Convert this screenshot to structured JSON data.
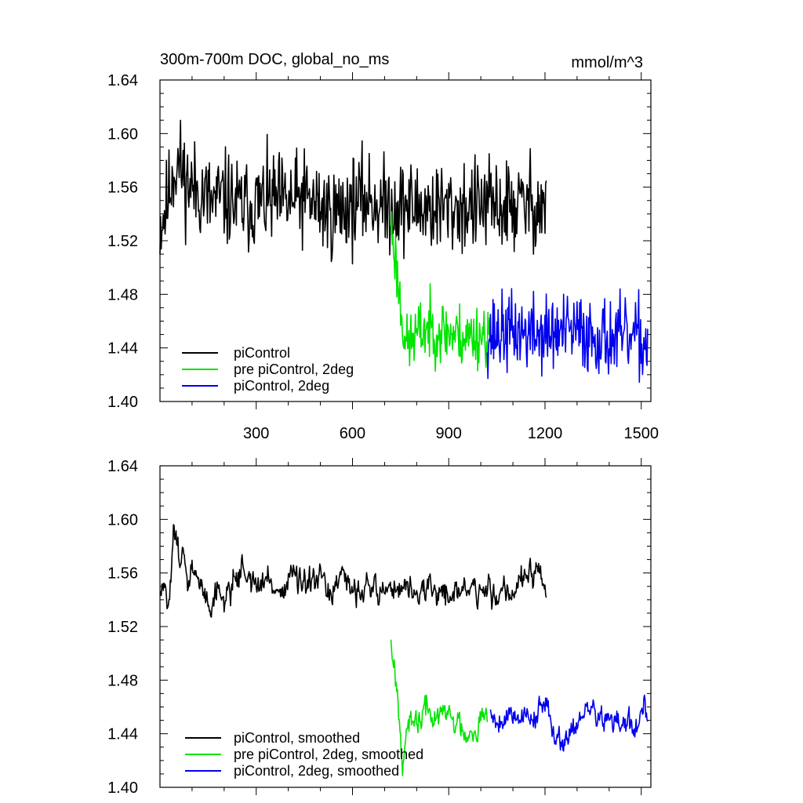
{
  "colors": {
    "piControl": "#000000",
    "pre": "#00e400",
    "twodeg": "#0000ee",
    "frame": "#000000"
  },
  "chart_data": [
    {
      "type": "line",
      "title": "300m-700m DOC, global_no_ms",
      "units": "mmol/m^3",
      "xlim": [
        0,
        1530
      ],
      "ylim": [
        1.4,
        1.64
      ],
      "x_ticks": [
        300,
        600,
        900,
        1200,
        1500
      ],
      "x_tick_labels": [
        "300",
        "600",
        "900",
        "1200",
        "1500"
      ],
      "y_ticks": [
        1.4,
        1.44,
        1.48,
        1.52,
        1.56,
        1.6,
        1.64
      ],
      "y_tick_labels": [
        "1.40",
        "1.44",
        "1.48",
        "1.52",
        "1.56",
        "1.60",
        "1.64"
      ],
      "legend_position": "bottom-left",
      "series": [
        {
          "name": "piControl",
          "color": "#000000",
          "kind": "noise",
          "anchors": [
            [
              0,
              1.532
            ],
            [
              20,
              1.545
            ],
            [
              40,
              1.572
            ],
            [
              60,
              1.578
            ],
            [
              80,
              1.565
            ],
            [
              100,
              1.56
            ],
            [
              130,
              1.556
            ],
            [
              160,
              1.548
            ],
            [
              200,
              1.552
            ],
            [
              250,
              1.545
            ],
            [
              300,
              1.548
            ],
            [
              350,
              1.55
            ],
            [
              400,
              1.548
            ],
            [
              450,
              1.552
            ],
            [
              500,
              1.545
            ],
            [
              540,
              1.54
            ],
            [
              600,
              1.548
            ],
            [
              650,
              1.552
            ],
            [
              700,
              1.545
            ],
            [
              720,
              1.548
            ],
            [
              750,
              1.546
            ],
            [
              800,
              1.545
            ],
            [
              900,
              1.544
            ],
            [
              1000,
              1.546
            ],
            [
              1100,
              1.545
            ],
            [
              1150,
              1.548
            ],
            [
              1200,
              1.546
            ],
            [
              1205,
              1.548
            ]
          ],
          "amp": 0.0175,
          "seed": 11
        },
        {
          "name": "pre piControl, 2deg",
          "color": "#00e400",
          "kind": "noise",
          "anchors": [
            [
              720,
              1.532
            ],
            [
              735,
              1.505
            ],
            [
              745,
              1.482
            ],
            [
              755,
              1.462
            ],
            [
              770,
              1.44
            ],
            [
              790,
              1.448
            ],
            [
              830,
              1.455
            ],
            [
              880,
              1.453
            ],
            [
              950,
              1.448
            ],
            [
              1000,
              1.45
            ],
            [
              1030,
              1.451
            ]
          ],
          "amp": 0.012,
          "seed": 23
        },
        {
          "name": "piControl, 2deg",
          "color": "#0000ee",
          "kind": "noise",
          "anchors": [
            [
              1020,
              1.45
            ],
            [
              1100,
              1.452
            ],
            [
              1200,
              1.45
            ],
            [
              1300,
              1.452
            ],
            [
              1400,
              1.447
            ],
            [
              1500,
              1.446
            ],
            [
              1520,
              1.44
            ]
          ],
          "amp": 0.0145,
          "seed": 37
        }
      ],
      "legend": [
        "piControl",
        "pre piControl, 2deg",
        "piControl, 2deg"
      ]
    },
    {
      "type": "line",
      "title": "",
      "units": "",
      "xlim": [
        0,
        1530
      ],
      "ylim": [
        1.4,
        1.64
      ],
      "x_ticks": [
        300,
        600,
        900,
        1200,
        1500
      ],
      "x_tick_labels": [],
      "y_ticks": [
        1.4,
        1.44,
        1.48,
        1.52,
        1.56,
        1.6,
        1.64
      ],
      "y_tick_labels": [
        "1.40",
        "1.44",
        "1.48",
        "1.52",
        "1.56",
        "1.60",
        "1.64"
      ],
      "legend_position": "bottom-left",
      "series": [
        {
          "name": "piControl, smoothed",
          "color": "#000000",
          "kind": "smooth",
          "anchors": [
            [
              0,
              1.54
            ],
            [
              10,
              1.551
            ],
            [
              22,
              1.531
            ],
            [
              36,
              1.565
            ],
            [
              42,
              1.604
            ],
            [
              55,
              1.575
            ],
            [
              70,
              1.58
            ],
            [
              85,
              1.545
            ],
            [
              100,
              1.565
            ],
            [
              120,
              1.55
            ],
            [
              140,
              1.545
            ],
            [
              160,
              1.538
            ],
            [
              180,
              1.548
            ],
            [
              200,
              1.54
            ],
            [
              230,
              1.555
            ],
            [
              260,
              1.565
            ],
            [
              300,
              1.548
            ],
            [
              340,
              1.555
            ],
            [
              380,
              1.545
            ],
            [
              410,
              1.562
            ],
            [
              440,
              1.548
            ],
            [
              480,
              1.55
            ],
            [
              500,
              1.556
            ],
            [
              520,
              1.543
            ],
            [
              560,
              1.553
            ],
            [
              600,
              1.548
            ],
            [
              640,
              1.552
            ],
            [
              680,
              1.545
            ],
            [
              720,
              1.55
            ],
            [
              760,
              1.548
            ],
            [
              800,
              1.545
            ],
            [
              850,
              1.547
            ],
            [
              900,
              1.544
            ],
            [
              950,
              1.548
            ],
            [
              1000,
              1.546
            ],
            [
              1050,
              1.545
            ],
            [
              1080,
              1.55
            ],
            [
              1100,
              1.545
            ],
            [
              1130,
              1.56
            ],
            [
              1150,
              1.552
            ],
            [
              1180,
              1.56
            ],
            [
              1200,
              1.545
            ],
            [
              1205,
              1.541
            ]
          ],
          "amp": 0.0105,
          "seed": 51
        },
        {
          "name": "pre piControl, 2deg, smoothed",
          "color": "#00e400",
          "kind": "smooth",
          "anchors": [
            [
              720,
              1.512
            ],
            [
              730,
              1.495
            ],
            [
              740,
              1.47
            ],
            [
              750,
              1.45
            ],
            [
              755,
              1.42
            ],
            [
              765,
              1.44
            ],
            [
              790,
              1.445
            ],
            [
              830,
              1.458
            ],
            [
              860,
              1.452
            ],
            [
              900,
              1.455
            ],
            [
              940,
              1.444
            ],
            [
              960,
              1.443
            ],
            [
              1000,
              1.45
            ],
            [
              1020,
              1.452
            ]
          ],
          "amp": 0.0105,
          "seed": 67
        },
        {
          "name": "piControl, 2deg, smoothed",
          "color": "#0000ee",
          "kind": "smooth",
          "anchors": [
            [
              1030,
              1.457
            ],
            [
              1050,
              1.45
            ],
            [
              1100,
              1.456
            ],
            [
              1150,
              1.452
            ],
            [
              1200,
              1.46
            ],
            [
              1240,
              1.438
            ],
            [
              1260,
              1.435
            ],
            [
              1300,
              1.45
            ],
            [
              1350,
              1.458
            ],
            [
              1400,
              1.448
            ],
            [
              1450,
              1.447
            ],
            [
              1480,
              1.444
            ],
            [
              1500,
              1.45
            ],
            [
              1510,
              1.462
            ],
            [
              1520,
              1.44
            ]
          ],
          "amp": 0.0095,
          "seed": 79
        }
      ],
      "legend": [
        "piControl, smoothed",
        "pre piControl, 2deg, smoothed",
        "piControl, 2deg, smoothed"
      ]
    }
  ]
}
